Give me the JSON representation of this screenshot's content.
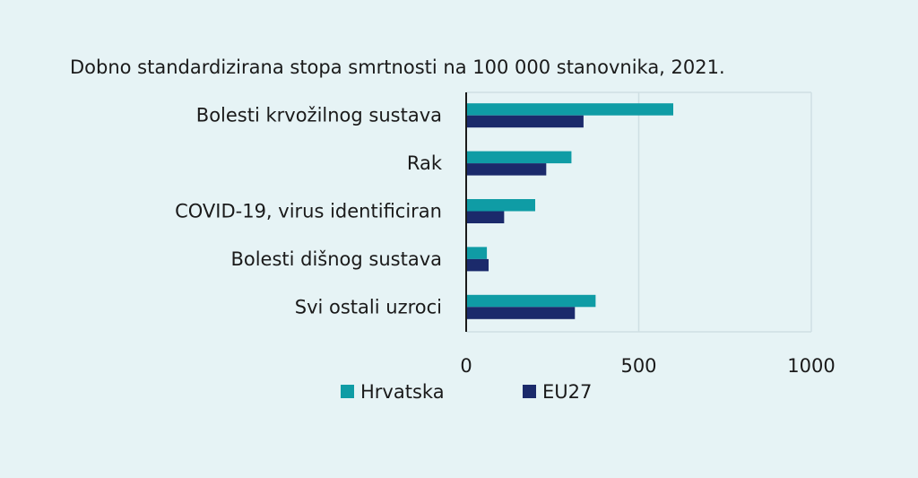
{
  "chart_data": {
    "type": "bar",
    "orientation": "horizontal",
    "title": "Dobno standardizirana stopa smrtnosti na 100 000 stanovnika, 2021.",
    "categories": [
      "Bolesti krvožilnog sustava",
      "Rak",
      "COVID-19, virus identificiran",
      "Bolesti dišnog sustava",
      "Svi ostali uzroci"
    ],
    "series": [
      {
        "name": "Hrvatska",
        "color": "#0f9ca5",
        "values": [
          600,
          305,
          200,
          60,
          375
        ]
      },
      {
        "name": "EU27",
        "color": "#1b2a6b",
        "values": [
          340,
          232,
          110,
          65,
          315
        ]
      }
    ],
    "xlim": [
      0,
      1000
    ],
    "xticks": [
      "0",
      "500",
      "1000"
    ],
    "grid": true,
    "legend_position": "bottom"
  }
}
